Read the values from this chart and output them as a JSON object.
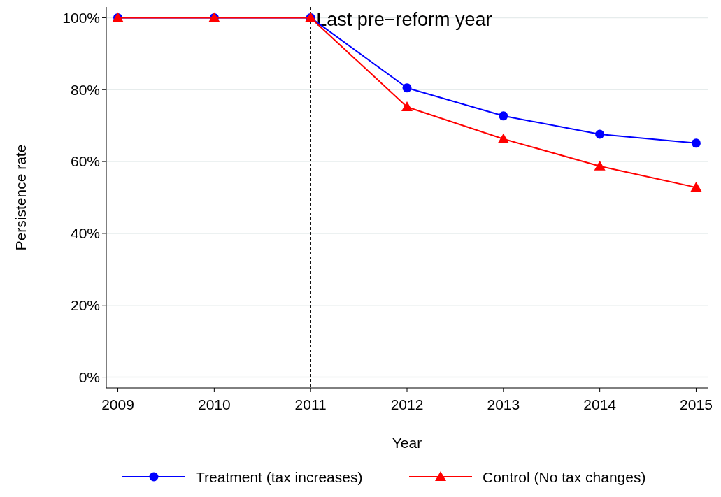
{
  "chart_data": {
    "type": "line",
    "xlabel": "Year",
    "ylabel": "Persistence rate",
    "x": [
      2009,
      2010,
      2011,
      2012,
      2013,
      2014,
      2015
    ],
    "xlim": [
      2008.88,
      2015.12
    ],
    "xticks": [
      2009,
      2010,
      2011,
      2012,
      2013,
      2014,
      2015
    ],
    "ylim": [
      -3,
      103
    ],
    "yticks": [
      {
        "value": 0,
        "label": "0%"
      },
      {
        "value": 20,
        "label": "20%"
      },
      {
        "value": 40,
        "label": "40%"
      },
      {
        "value": 60,
        "label": "60%"
      },
      {
        "value": 80,
        "label": "80%"
      },
      {
        "value": 100,
        "label": "100%"
      }
    ],
    "grid": "y",
    "legend": "bottom",
    "line_style": "solid",
    "ref_lines": [
      {
        "axis": "x",
        "value": 2011,
        "label": "Last pre−reform year",
        "color": "#000000",
        "line_style": "dashed"
      }
    ],
    "series": [
      {
        "name": "Treatment (tax increases)",
        "color": "#0000ff",
        "marker": "circle",
        "values": [
          100,
          100,
          100,
          80.5,
          72.7,
          67.6,
          65.1
        ]
      },
      {
        "name": "Control (No tax changes)",
        "color": "#ff0000",
        "marker": "triangle",
        "values": [
          100,
          100,
          100,
          75.2,
          66.3,
          58.7,
          52.8
        ]
      }
    ]
  }
}
